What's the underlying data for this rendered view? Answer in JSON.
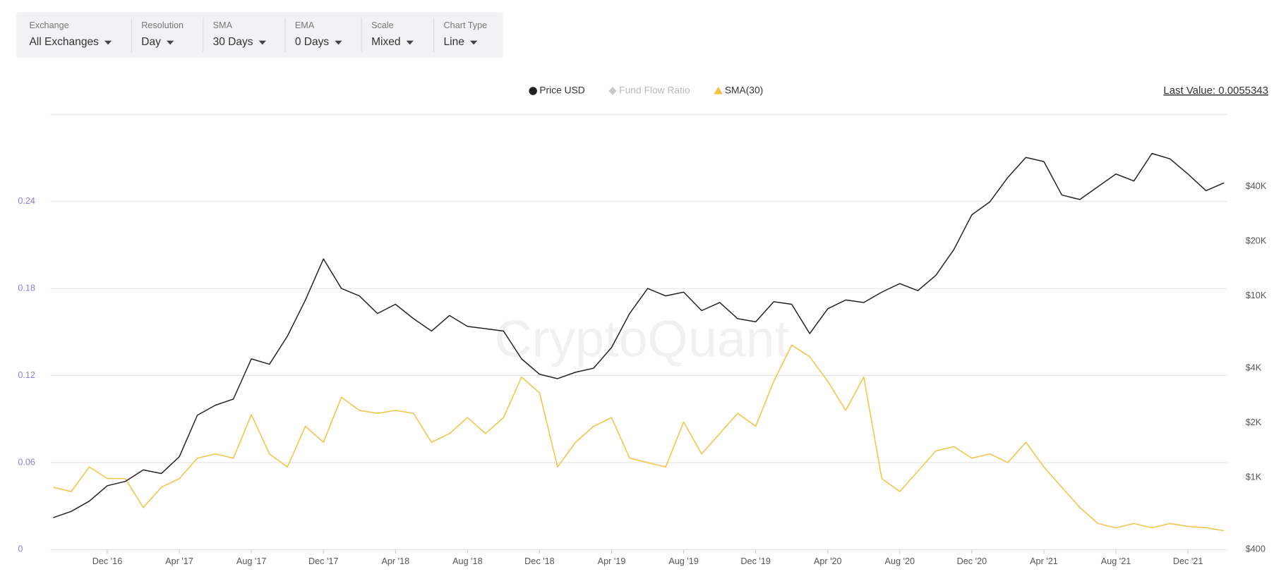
{
  "controls": [
    {
      "label": "Exchange",
      "value": "All Exchanges"
    },
    {
      "label": "Resolution",
      "value": "Day"
    },
    {
      "label": "SMA",
      "value": "30 Days"
    },
    {
      "label": "EMA",
      "value": "0 Days"
    },
    {
      "label": "Scale",
      "value": "Mixed"
    },
    {
      "label": "Chart Type",
      "value": "Line"
    }
  ],
  "chart_data": {
    "type": "line",
    "last_value": "Last Value: 0.0055343",
    "watermark": "CryptoQuant",
    "categories": [
      null,
      null,
      null,
      "Dec '16",
      null,
      null,
      null,
      "Apr '17",
      null,
      null,
      null,
      "Aug '17",
      null,
      null,
      null,
      "Dec '17",
      null,
      null,
      null,
      "Apr '18",
      null,
      null,
      null,
      "Aug '18",
      null,
      null,
      null,
      "Dec '18",
      null,
      null,
      null,
      "Apr '19",
      null,
      null,
      null,
      "Aug '19",
      null,
      null,
      null,
      "Dec '19",
      null,
      null,
      null,
      "Apr '20",
      null,
      null,
      null,
      "Aug '20",
      null,
      null,
      null,
      "Dec '20",
      null,
      null,
      null,
      "Apr '21",
      null,
      null,
      null,
      "Aug '21",
      null,
      null,
      null,
      "Dec '21",
      null,
      null
    ],
    "series": [
      {
        "name": "Price USD",
        "color": "#222222",
        "axis": "y2",
        "marker": "circle",
        "values": [
          600,
          650,
          740,
          900,
          950,
          1100,
          1050,
          1300,
          2200,
          2500,
          2700,
          4500,
          4200,
          6000,
          9500,
          16000,
          11000,
          10000,
          8000,
          9000,
          7500,
          6400,
          7800,
          6800,
          6600,
          6400,
          4500,
          3700,
          3500,
          3800,
          4000,
          5200,
          8000,
          11000,
          10000,
          10500,
          8300,
          9200,
          7500,
          7200,
          9300,
          9000,
          6200,
          8500,
          9500,
          9200,
          10500,
          11700,
          10700,
          13000,
          18000,
          28000,
          33000,
          45000,
          58000,
          55000,
          36000,
          34000,
          40000,
          47000,
          43000,
          61000,
          57000,
          47000,
          38000,
          42000
        ]
      },
      {
        "name": "SMA(30)",
        "color": "#f5c142",
        "marker": "triangle",
        "values": [
          0.043,
          0.04,
          0.057,
          0.049,
          0.049,
          0.029,
          0.043,
          0.049,
          0.063,
          0.066,
          0.063,
          0.093,
          0.066,
          0.057,
          0.085,
          0.074,
          0.105,
          0.096,
          0.094,
          0.096,
          0.094,
          0.074,
          0.08,
          0.091,
          0.08,
          0.091,
          0.119,
          0.108,
          0.057,
          0.074,
          0.085,
          0.091,
          0.063,
          0.06,
          0.057,
          0.088,
          0.066,
          0.08,
          0.094,
          0.085,
          0.116,
          0.141,
          0.133,
          0.116,
          0.096,
          0.119,
          0.049,
          0.04,
          0.054,
          0.068,
          0.071,
          0.063,
          0.066,
          0.06,
          0.074,
          0.057,
          0.043,
          0.029,
          0.018,
          0.015,
          0.018,
          0.015,
          0.018,
          0.016,
          0.015,
          0.013
        ]
      }
    ],
    "hidden_series": [
      {
        "name": "Fund Flow Ratio",
        "color": "#c8c8c8",
        "marker": "diamond"
      }
    ],
    "ylim": [
      0,
      0.3
    ],
    "yticks": [
      0,
      0.06,
      0.12,
      0.18,
      0.24
    ],
    "y_tick_color": "#8a7fe0",
    "y2lim": [
      400,
      100000
    ],
    "y2_log": true,
    "y2ticks": [
      {
        "value": 400,
        "label": "$400"
      },
      {
        "value": 1000,
        "label": "$1K"
      },
      {
        "value": 2000,
        "label": "$2K"
      },
      {
        "value": 4000,
        "label": "$4K"
      },
      {
        "value": 10000,
        "label": "$10K"
      },
      {
        "value": 20000,
        "label": "$20K"
      },
      {
        "value": 40000,
        "label": "$40K"
      }
    ],
    "grid": true
  }
}
